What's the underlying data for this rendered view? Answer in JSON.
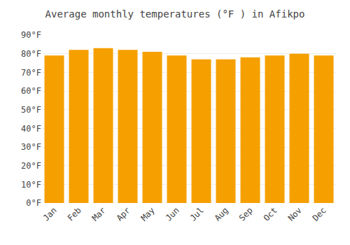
{
  "chart_data": {
    "type": "bar",
    "title": "Average monthly temperatures (°F ) in Afikpo",
    "categories": [
      "Jan",
      "Feb",
      "Mar",
      "Apr",
      "May",
      "Jun",
      "Jul",
      "Aug",
      "Sep",
      "Oct",
      "Nov",
      "Dec"
    ],
    "values": [
      79,
      82,
      83,
      82,
      81,
      79,
      77,
      77,
      78,
      79,
      80,
      79
    ],
    "color": "#F5A000",
    "ylim": [
      0,
      90
    ],
    "yticks": [
      {
        "value": 0,
        "label": "0°F"
      },
      {
        "value": 10,
        "label": "10°F"
      },
      {
        "value": 20,
        "label": "20°F"
      },
      {
        "value": 30,
        "label": "30°F"
      },
      {
        "value": 40,
        "label": "40°F"
      },
      {
        "value": 50,
        "label": "50°F"
      },
      {
        "value": 60,
        "label": "60°F"
      },
      {
        "value": 70,
        "label": "70°F"
      },
      {
        "value": 80,
        "label": "80°F"
      },
      {
        "value": 90,
        "label": "90°F"
      }
    ],
    "grid": true
  }
}
